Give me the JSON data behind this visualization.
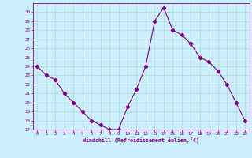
{
  "x": [
    0,
    1,
    2,
    3,
    4,
    5,
    6,
    7,
    8,
    9,
    10,
    11,
    12,
    13,
    14,
    15,
    16,
    17,
    18,
    19,
    20,
    21,
    22,
    23
  ],
  "y": [
    24,
    23,
    22.5,
    21,
    20,
    19,
    18,
    17.5,
    17,
    17,
    19.5,
    21.5,
    24,
    29,
    30.5,
    28,
    27.5,
    26.5,
    25,
    24.5,
    23.5,
    22,
    20,
    18
  ],
  "line_color": "#800080",
  "marker": "D",
  "marker_size": 2.2,
  "bg_color": "#cceeff",
  "grid_color": "#aaddcc",
  "xlabel": "Windchill (Refroidissement éolien,°C)",
  "xlabel_color": "#800080",
  "tick_color": "#800080",
  "ylim": [
    17,
    31
  ],
  "xlim": [
    -0.5,
    23.5
  ],
  "yticks": [
    17,
    18,
    19,
    20,
    21,
    22,
    23,
    24,
    25,
    26,
    27,
    28,
    29,
    30
  ],
  "xticks": [
    0,
    1,
    2,
    3,
    4,
    5,
    6,
    7,
    8,
    9,
    10,
    11,
    12,
    13,
    14,
    15,
    16,
    17,
    18,
    19,
    20,
    21,
    22,
    23
  ]
}
